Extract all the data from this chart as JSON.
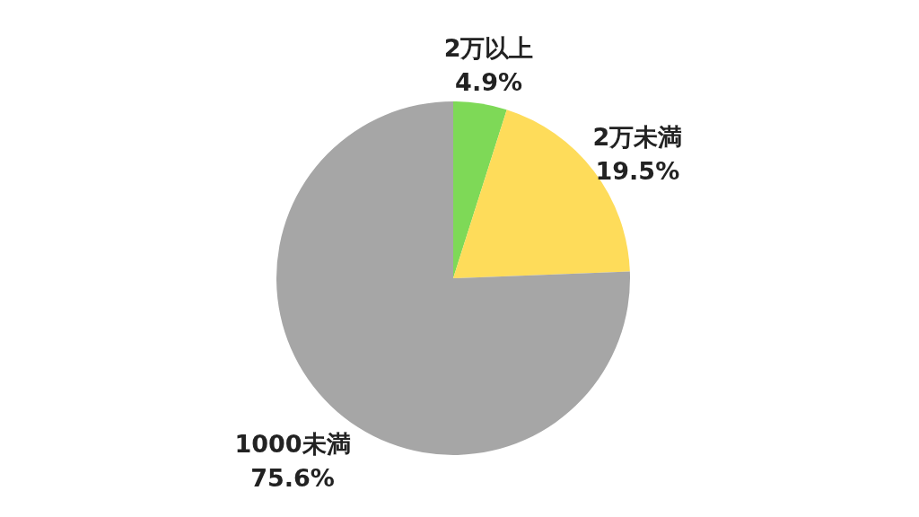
{
  "chart_data": {
    "type": "pie",
    "categories": [
      "2万以上",
      "2万未満",
      "1000未満"
    ],
    "values": [
      4.9,
      19.5,
      75.6
    ],
    "colors": [
      "#7ed957",
      "#fedc5a",
      "#a6a6a6"
    ],
    "value_labels": [
      "4.9%",
      "19.5%",
      "75.6%"
    ]
  }
}
